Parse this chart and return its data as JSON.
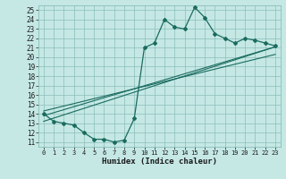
{
  "xlabel": "Humidex (Indice chaleur)",
  "ylabel": "",
  "background_color": "#c5e8e5",
  "grid_color": "#8bbdb9",
  "line_color": "#1a6b5e",
  "xlim": [
    -0.5,
    23.5
  ],
  "ylim": [
    10.5,
    25.5
  ],
  "yticks": [
    11,
    12,
    13,
    14,
    15,
    16,
    17,
    18,
    19,
    20,
    21,
    22,
    23,
    24,
    25
  ],
  "xticks": [
    0,
    1,
    2,
    3,
    4,
    5,
    6,
    7,
    8,
    9,
    10,
    11,
    12,
    13,
    14,
    15,
    16,
    17,
    18,
    19,
    20,
    21,
    22,
    23
  ],
  "curve1_x": [
    0,
    1,
    2,
    3,
    4,
    5,
    6,
    7,
    8,
    9,
    10,
    11,
    12,
    13,
    14,
    15,
    16,
    17,
    18,
    19,
    20,
    21,
    22,
    23
  ],
  "curve1_y": [
    14.0,
    13.2,
    13.0,
    12.8,
    12.0,
    11.3,
    11.3,
    11.0,
    11.2,
    13.5,
    21.0,
    21.5,
    24.0,
    23.2,
    23.0,
    25.3,
    24.2,
    22.5,
    22.0,
    21.5,
    22.0,
    21.8,
    21.5,
    21.2
  ],
  "line2_x": [
    0,
    23
  ],
  "line2_y": [
    13.8,
    21.1
  ],
  "line3_x": [
    0,
    23
  ],
  "line3_y": [
    13.2,
    21.1
  ],
  "line4_x": [
    0,
    23
  ],
  "line4_y": [
    14.3,
    20.3
  ]
}
